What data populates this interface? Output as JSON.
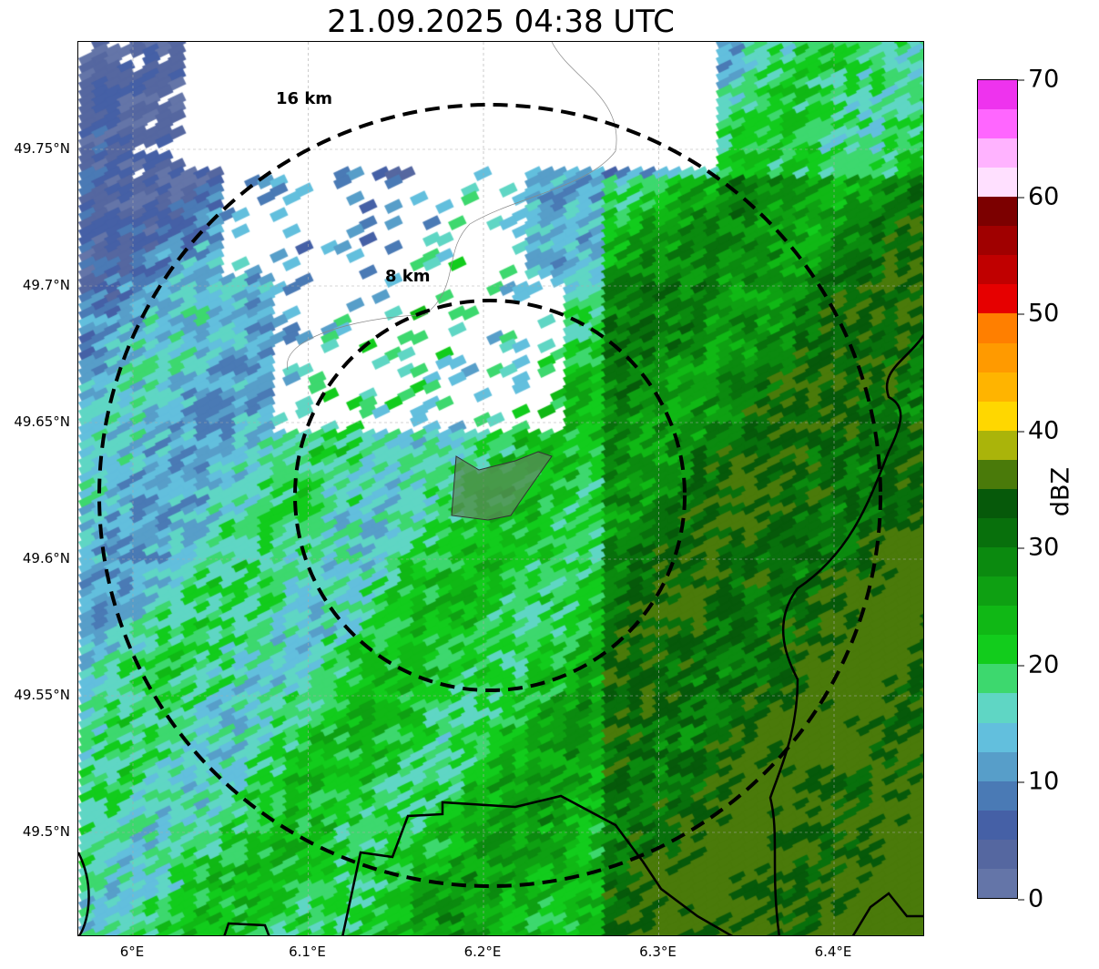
{
  "title": "21.09.2025 04:38 UTC",
  "map": {
    "lat_ticks": [
      {
        "value": 49.75,
        "label": "49.75°N"
      },
      {
        "value": 49.7,
        "label": "49.7°N"
      },
      {
        "value": 49.65,
        "label": "49.65°N"
      },
      {
        "value": 49.6,
        "label": "49.6°N"
      },
      {
        "value": 49.55,
        "label": "49.55°N"
      },
      {
        "value": 49.5,
        "label": "49.5°N"
      }
    ],
    "lon_ticks": [
      {
        "value": 6.0,
        "label": "6°E"
      },
      {
        "value": 6.1,
        "label": "6.1°E"
      },
      {
        "value": 6.2,
        "label": "6.2°E"
      },
      {
        "value": 6.3,
        "label": "6.3°E"
      },
      {
        "value": 6.4,
        "label": "6.4°E"
      }
    ],
    "range_rings": [
      {
        "label": "16 km"
      },
      {
        "label": "8 km"
      }
    ]
  },
  "colorbar": {
    "label": "dBZ",
    "min": 0,
    "max": 70,
    "ticks": [
      "0",
      "10",
      "20",
      "30",
      "40",
      "50",
      "60",
      "70"
    ],
    "colors": [
      "#6475a8",
      "#5567a0",
      "#4560a6",
      "#4a7ab5",
      "#579ec9",
      "#62bfdd",
      "#5fd6c4",
      "#3dd86e",
      "#12cc1c",
      "#10b815",
      "#0ea012",
      "#0b8a0f",
      "#08700c",
      "#06590a",
      "#4a7a0a",
      "#aab40a",
      "#ffd700",
      "#ffb400",
      "#ff9a00",
      "#ff7f00",
      "#e60000",
      "#c00000",
      "#a00000",
      "#7c0000",
      "#ffe0ff",
      "#ffb3ff",
      "#ff66ff",
      "#ee33ee"
    ]
  }
}
